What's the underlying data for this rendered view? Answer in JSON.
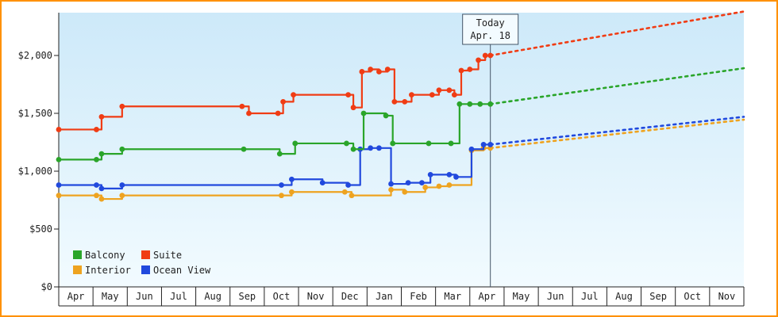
{
  "chart_data": {
    "type": "line",
    "title": "",
    "x_axis": {
      "months": [
        "Apr",
        "May",
        "Jun",
        "Jul",
        "Aug",
        "Sep",
        "Oct",
        "Nov",
        "Dec",
        "Jan",
        "Feb",
        "Mar",
        "Apr",
        "May",
        "Jun",
        "Jul",
        "Aug",
        "Sep",
        "Oct",
        "Nov"
      ],
      "xlim": [
        -0.5,
        19.5
      ]
    },
    "y_axis": {
      "tick_values": [
        0,
        500,
        1000,
        1500,
        2000
      ],
      "tick_labels": [
        "$0",
        "$500",
        "$1,000",
        "$1,500",
        "$2,000"
      ],
      "ylim": [
        0,
        2370
      ]
    },
    "background": {
      "top": "#cde9f9",
      "bottom": "#f2fbff"
    },
    "frame_border_color": "#ff9100",
    "today": {
      "month_index": 12.1,
      "lines": [
        "Today",
        "Apr. 18"
      ]
    },
    "legend": {
      "position": "bottom-left",
      "columns": 2,
      "items": [
        "Balcony",
        "Suite",
        "Interior",
        "Ocean View"
      ]
    },
    "series": [
      {
        "name": "Balcony",
        "color": "#2aa52a",
        "points": [
          [
            -0.5,
            1100
          ],
          [
            0.6,
            1100
          ],
          [
            0.75,
            1150
          ],
          [
            1.35,
            1190
          ],
          [
            4.9,
            1190
          ],
          [
            5.95,
            1150
          ],
          [
            6.4,
            1240
          ],
          [
            7.9,
            1240
          ],
          [
            8.1,
            1190
          ],
          [
            8.4,
            1500
          ],
          [
            9.05,
            1480
          ],
          [
            9.25,
            1240
          ],
          [
            10.3,
            1240
          ],
          [
            10.95,
            1240
          ],
          [
            11.2,
            1580
          ],
          [
            11.5,
            1580
          ],
          [
            11.8,
            1580
          ],
          [
            12.1,
            1580
          ]
        ],
        "projection": [
          [
            12.1,
            1580
          ],
          [
            19.5,
            1890
          ]
        ]
      },
      {
        "name": "Suite",
        "color": "#f03c14",
        "points": [
          [
            -0.5,
            1360
          ],
          [
            0.6,
            1360
          ],
          [
            0.75,
            1470
          ],
          [
            1.35,
            1560
          ],
          [
            4.85,
            1560
          ],
          [
            5.05,
            1500
          ],
          [
            5.9,
            1500
          ],
          [
            6.05,
            1600
          ],
          [
            6.35,
            1660
          ],
          [
            7.95,
            1660
          ],
          [
            8.1,
            1550
          ],
          [
            8.35,
            1860
          ],
          [
            8.6,
            1880
          ],
          [
            8.85,
            1860
          ],
          [
            9.1,
            1880
          ],
          [
            9.3,
            1600
          ],
          [
            9.6,
            1600
          ],
          [
            9.8,
            1660
          ],
          [
            10.4,
            1660
          ],
          [
            10.6,
            1700
          ],
          [
            10.9,
            1700
          ],
          [
            11.05,
            1660
          ],
          [
            11.25,
            1870
          ],
          [
            11.5,
            1880
          ],
          [
            11.75,
            1960
          ],
          [
            11.95,
            2000
          ],
          [
            12.1,
            2000
          ]
        ],
        "projection": [
          [
            12.1,
            2000
          ],
          [
            19.5,
            2380
          ]
        ]
      },
      {
        "name": "Interior",
        "color": "#eea320",
        "points": [
          [
            -0.5,
            790
          ],
          [
            0.6,
            790
          ],
          [
            0.75,
            760
          ],
          [
            1.35,
            790
          ],
          [
            6.0,
            790
          ],
          [
            6.3,
            820
          ],
          [
            7.85,
            820
          ],
          [
            8.05,
            790
          ],
          [
            9.2,
            840
          ],
          [
            9.6,
            820
          ],
          [
            10.2,
            860
          ],
          [
            10.6,
            870
          ],
          [
            10.9,
            880
          ],
          [
            11.55,
            1180
          ],
          [
            11.9,
            1200
          ],
          [
            12.1,
            1200
          ]
        ],
        "projection": [
          [
            12.1,
            1200
          ],
          [
            19.5,
            1445
          ]
        ]
      },
      {
        "name": "Ocean View",
        "color": "#2149dd",
        "points": [
          [
            -0.5,
            880
          ],
          [
            0.6,
            880
          ],
          [
            0.75,
            850
          ],
          [
            1.35,
            880
          ],
          [
            6.0,
            880
          ],
          [
            6.3,
            930
          ],
          [
            7.2,
            900
          ],
          [
            7.95,
            880
          ],
          [
            8.3,
            1190
          ],
          [
            8.6,
            1200
          ],
          [
            8.85,
            1200
          ],
          [
            9.2,
            890
          ],
          [
            9.7,
            900
          ],
          [
            10.1,
            900
          ],
          [
            10.35,
            970
          ],
          [
            10.9,
            970
          ],
          [
            11.1,
            950
          ],
          [
            11.55,
            1190
          ],
          [
            11.9,
            1230
          ],
          [
            12.1,
            1230
          ]
        ],
        "projection": [
          [
            12.1,
            1230
          ],
          [
            19.5,
            1470
          ]
        ]
      }
    ]
  }
}
